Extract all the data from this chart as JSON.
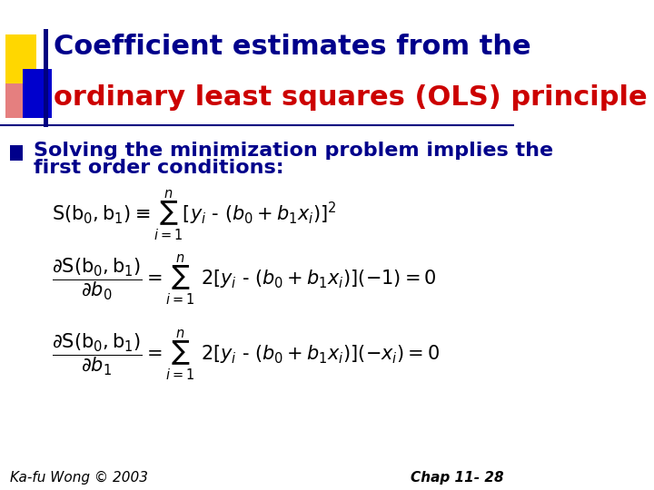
{
  "bg_color": "#ffffff",
  "title_line1": "Coefficient estimates from the",
  "title_line2": "ordinary least squares (OLS) principle",
  "title_line1_color": "#00008B",
  "title_line2_color": "#CC0000",
  "title_fontsize": 22,
  "bullet_text_line1": "Solving the minimization problem implies the",
  "bullet_text_line2": "first order conditions:",
  "bullet_color": "#00008B",
  "bullet_fontsize": 16,
  "eq1": "S(b_{0},b_{1}) \\equiv \\sum_{i=1}^{n} [y_{i} - (b_{0} + b_{1}x_{i})]^{2}",
  "eq2": "\\frac{\\partial S(b_{0},b_{1})}{\\partial b_{0}} = \\sum_{i=1}^{n} 2[y_{i} - (b_{0} + b_{1}x_{i})](-1) = 0",
  "eq3": "\\frac{\\partial S(b_{0},b_{1})}{\\partial b_{1}} = \\sum_{i=1}^{n} 2[y_{i} - (b_{0} + b_{1}x_{i})](-x_{i}) = 0",
  "eq_color": "#000000",
  "eq_fontsize": 15,
  "footer_left": "Ka-fu Wong © 2003",
  "footer_right": "Chap 11- 28",
  "footer_color": "#000000",
  "footer_fontsize": 11,
  "divider_color": "#000080",
  "accent_yellow": "#FFD700",
  "accent_blue": "#0000CD",
  "accent_red": "#CC0000"
}
